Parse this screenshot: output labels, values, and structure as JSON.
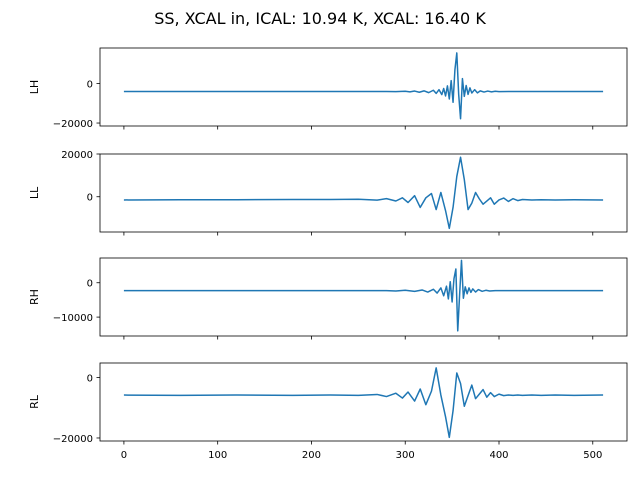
{
  "figure": {
    "suptitle": "SS, XCAL in, ICAL: 10.94 K, XCAL: 16.40 K"
  },
  "chart_data": [
    {
      "type": "line",
      "ylabel": "LH",
      "xlim": [
        -25.5,
        536.5
      ],
      "ylim": [
        -21500,
        18000
      ],
      "yticks": [
        0,
        -20000
      ],
      "ytick_labels": [
        "0",
        "−20000"
      ],
      "xticks": [
        0,
        100,
        200,
        300,
        400,
        500
      ],
      "xtick_labels": [],
      "show_xticklabels": false,
      "series": [
        {
          "color": "#1f77b4",
          "x": [
            0,
            280,
            290,
            300,
            305,
            310,
            315,
            320,
            325,
            330,
            333,
            336,
            339,
            341,
            343,
            345,
            347,
            349,
            351,
            353,
            355,
            357,
            359,
            361,
            363,
            365,
            367,
            369,
            371,
            374,
            377,
            380,
            384,
            388,
            392,
            396,
            400,
            410,
            420,
            440,
            511
          ],
          "y": [
            -4000,
            -4000,
            -4100,
            -3900,
            -4200,
            -3800,
            -4400,
            -3700,
            -4600,
            -3400,
            -5000,
            -3100,
            -5600,
            -2500,
            -6300,
            -1200,
            -7800,
            1500,
            -9500,
            7000,
            15500,
            -5500,
            -17800,
            2500,
            -6500,
            -1000,
            -5500,
            -2200,
            -4800,
            -3100,
            -4700,
            -3700,
            -4300,
            -3800,
            -4200,
            -3900,
            -4100,
            -4000,
            -4000,
            -4000,
            -4000
          ]
        }
      ]
    },
    {
      "type": "line",
      "ylabel": "LL",
      "xlim": [
        -25.5,
        536.5
      ],
      "ylim": [
        -16500,
        20000
      ],
      "yticks": [
        0,
        20000
      ],
      "ytick_labels": [
        "0",
        "20000"
      ],
      "xticks": [
        0,
        100,
        200,
        300,
        400,
        500
      ],
      "xtick_labels": [],
      "show_xticklabels": false,
      "series": [
        {
          "color": "#1f77b4",
          "x": [
            0,
            60,
            120,
            180,
            220,
            250,
            270,
            280,
            290,
            297,
            303,
            310,
            316,
            322,
            328,
            333,
            338,
            343,
            347,
            351,
            355,
            359,
            363,
            367,
            371,
            375,
            379,
            383,
            387,
            391,
            395,
            400,
            405,
            410,
            415,
            420,
            425,
            435,
            445,
            460,
            480,
            511
          ],
          "y": [
            -1500,
            -1400,
            -1400,
            -1300,
            -1300,
            -1200,
            -1600,
            -900,
            -2000,
            -500,
            -2700,
            500,
            -5000,
            -500,
            1500,
            -6000,
            2000,
            -6500,
            -14800,
            -5000,
            9500,
            18500,
            8000,
            -6000,
            -3000,
            2000,
            -1000,
            -3500,
            -2000,
            -500,
            -3500,
            -1500,
            -600,
            -2200,
            -900,
            -1800,
            -1300,
            -1500,
            -1400,
            -1500,
            -1400,
            -1500
          ]
        }
      ]
    },
    {
      "type": "line",
      "ylabel": "RH",
      "xlim": [
        -25.5,
        536.5
      ],
      "ylim": [
        -15500,
        7200
      ],
      "yticks": [
        0,
        -10000
      ],
      "ytick_labels": [
        "0",
        "−10000"
      ],
      "xticks": [
        0,
        100,
        200,
        300,
        400,
        500
      ],
      "xtick_labels": [],
      "show_xticklabels": false,
      "series": [
        {
          "color": "#1f77b4",
          "x": [
            0,
            280,
            290,
            300,
            310,
            318,
            324,
            330,
            334,
            338,
            341,
            344,
            346,
            348,
            350,
            352,
            354,
            356,
            358,
            360,
            362,
            364,
            366,
            368,
            370,
            372,
            375,
            378,
            382,
            386,
            390,
            396,
            402,
            410,
            420,
            440,
            511
          ],
          "y": [
            -2300,
            -2300,
            -2400,
            -2200,
            -2500,
            -2100,
            -2700,
            -1900,
            -3000,
            -1500,
            -3800,
            -1000,
            -4700,
            300,
            -5600,
            1200,
            4000,
            -14000,
            -3500,
            6500,
            -4500,
            -1200,
            -3200,
            -1500,
            -2800,
            -1800,
            -2700,
            -2000,
            -2500,
            -2200,
            -2400,
            -2300,
            -2300,
            -2300,
            -2300,
            -2300,
            -2300
          ]
        }
      ]
    },
    {
      "type": "line",
      "ylabel": "RL",
      "xlim": [
        -25.5,
        536.5
      ],
      "ylim": [
        -21000,
        4800
      ],
      "yticks": [
        0,
        -20000
      ],
      "ytick_labels": [
        "0",
        "−20000"
      ],
      "xticks": [
        0,
        100,
        200,
        300,
        400,
        500
      ],
      "xtick_labels": [],
      "show_xticklabels": true,
      "series": [
        {
          "color": "#1f77b4",
          "x": [
            0,
            60,
            120,
            180,
            220,
            250,
            270,
            280,
            290,
            297,
            303,
            310,
            316,
            322,
            328,
            333,
            338,
            343,
            347,
            351,
            355,
            359,
            363,
            367,
            371,
            375,
            379,
            383,
            387,
            391,
            395,
            400,
            405,
            410,
            415,
            420,
            425,
            435,
            445,
            460,
            480,
            511
          ],
          "y": [
            -5800,
            -5900,
            -5800,
            -5900,
            -5800,
            -5900,
            -5600,
            -6300,
            -5200,
            -6800,
            -4800,
            -7800,
            -3800,
            -9000,
            -4500,
            3200,
            -5800,
            -13000,
            -19800,
            -11000,
            1500,
            -2000,
            -9500,
            -6000,
            -2500,
            -7000,
            -5500,
            -4000,
            -6500,
            -5000,
            -6300,
            -5500,
            -6000,
            -5800,
            -5900,
            -5800,
            -5900,
            -5800,
            -5900,
            -5800,
            -5900,
            -5800
          ]
        }
      ]
    }
  ]
}
